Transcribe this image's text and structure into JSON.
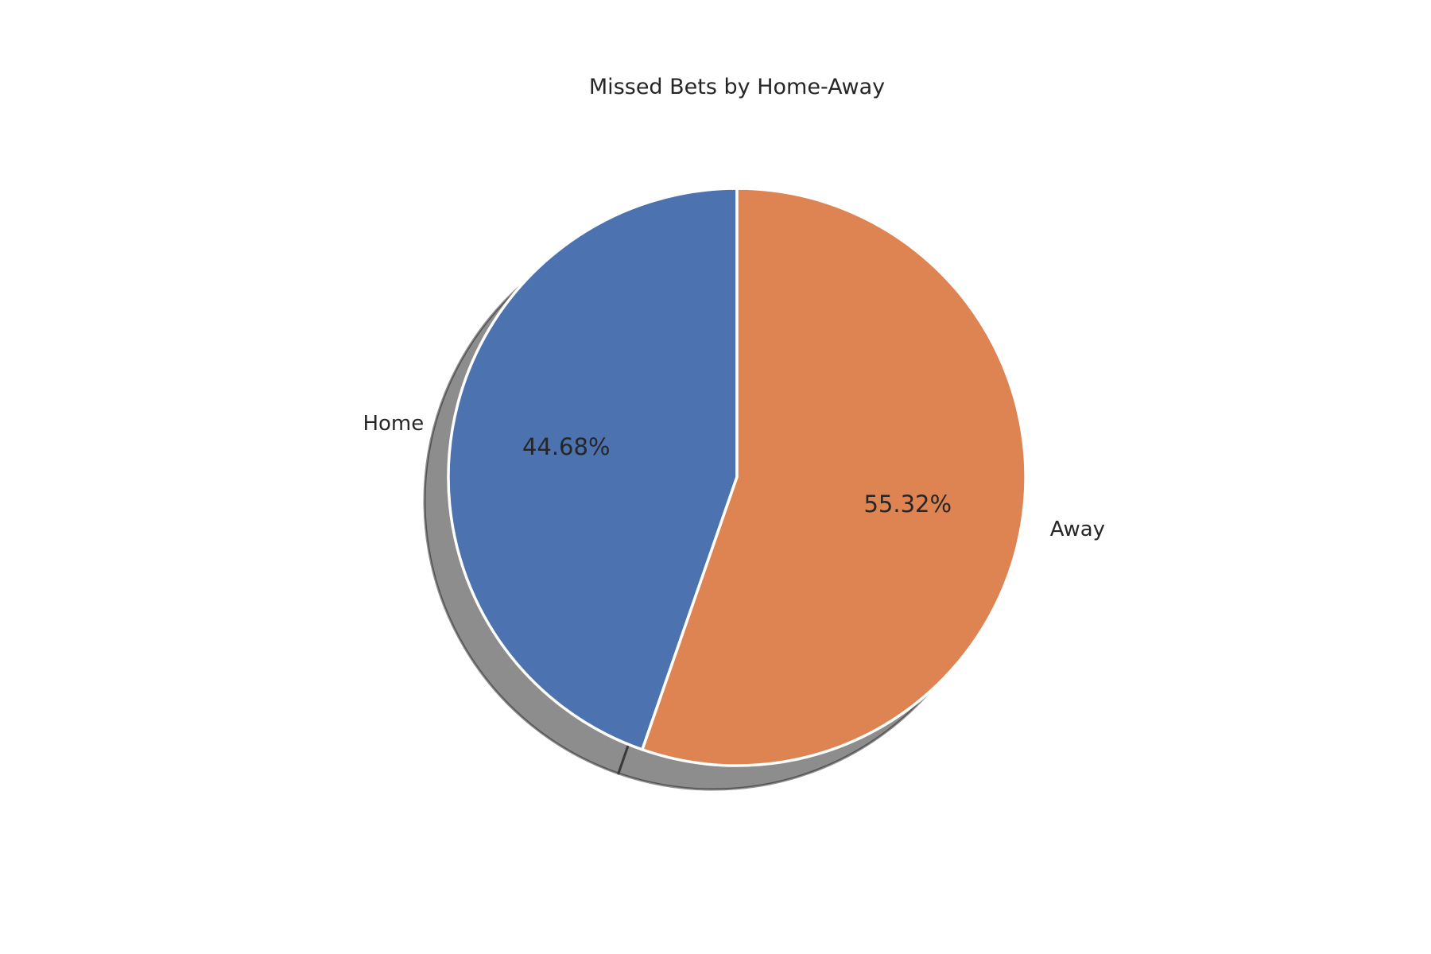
{
  "chart_data": {
    "type": "pie",
    "title": "Missed Bets by Home-Away",
    "slices": [
      {
        "label": "Home",
        "value": 44.68,
        "pct_label": "44.68%",
        "color": "#4c72b0"
      },
      {
        "label": "Away",
        "value": 55.32,
        "pct_label": "55.32%",
        "color": "#dd8452"
      }
    ],
    "start_angle_deg": 90,
    "direction": "counterclockwise",
    "shadow": true,
    "wedge_edge_color": "#ffffff"
  }
}
